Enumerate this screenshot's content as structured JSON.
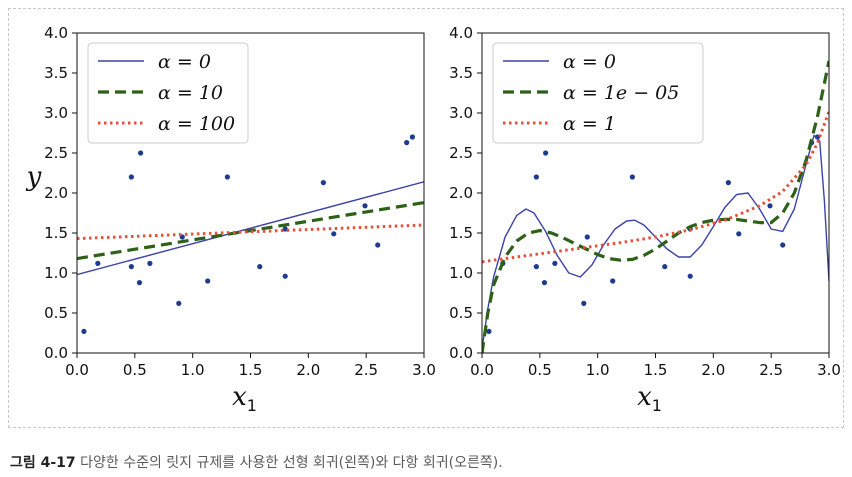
{
  "caption": {
    "number": "그림 4-17",
    "text": "다양한 수준의 릿지 규제를 사용한 선형 회귀(왼쪽)와 다항 회귀(오른쪽)."
  },
  "colors": {
    "points": "#1f3b8f",
    "solid": "#3b42a8",
    "dashed": "#2d6118",
    "dotted": "#e4503c"
  },
  "chart_data": [
    {
      "type": "scatter+line",
      "title": "",
      "xlabel": "x",
      "xlabel_sub": "1",
      "ylabel": "y",
      "xlim": [
        0.0,
        3.0
      ],
      "ylim": [
        0.0,
        4.0
      ],
      "xticks": [
        "0.0",
        "0.5",
        "1.0",
        "1.5",
        "2.0",
        "2.5",
        "3.0"
      ],
      "yticks": [
        "0.0",
        "0.5",
        "1.0",
        "1.5",
        "2.0",
        "2.5",
        "3.0",
        "3.5",
        "4.0"
      ],
      "legend_position": "top-left",
      "points": {
        "x": [
          0.06,
          0.18,
          0.47,
          0.47,
          0.54,
          0.55,
          0.63,
          0.88,
          0.91,
          1.13,
          1.3,
          1.58,
          1.8,
          1.8,
          2.13,
          2.22,
          2.49,
          2.6,
          2.85,
          2.9
        ],
        "y": [
          0.27,
          1.12,
          2.2,
          1.08,
          0.88,
          2.5,
          1.12,
          0.62,
          1.45,
          0.9,
          2.2,
          1.08,
          1.55,
          0.96,
          2.13,
          1.49,
          1.84,
          1.35,
          2.63,
          2.7
        ]
      },
      "series": [
        {
          "name": "α = 0",
          "style": "solid",
          "x": [
            0.0,
            3.0
          ],
          "y": [
            0.98,
            2.14
          ]
        },
        {
          "name": "α = 10",
          "style": "dashed",
          "x": [
            0.0,
            3.0
          ],
          "y": [
            1.18,
            1.88
          ]
        },
        {
          "name": "α = 100",
          "style": "dotted",
          "x": [
            0.0,
            3.0
          ],
          "y": [
            1.43,
            1.6
          ]
        }
      ]
    },
    {
      "type": "scatter+line",
      "title": "",
      "xlabel": "x",
      "xlabel_sub": "1",
      "ylabel": "",
      "xlim": [
        0.0,
        3.0
      ],
      "ylim": [
        0.0,
        4.0
      ],
      "xticks": [
        "0.0",
        "0.5",
        "1.0",
        "1.5",
        "2.0",
        "2.5",
        "3.0"
      ],
      "yticks": [
        "0.0",
        "0.5",
        "1.0",
        "1.5",
        "2.0",
        "2.5",
        "3.0",
        "3.5",
        "4.0"
      ],
      "legend_position": "top-left",
      "points": {
        "x": [
          0.06,
          0.18,
          0.47,
          0.47,
          0.54,
          0.55,
          0.63,
          0.88,
          0.91,
          1.13,
          1.3,
          1.58,
          1.8,
          1.8,
          2.13,
          2.22,
          2.49,
          2.6,
          2.85,
          2.9
        ],
        "y": [
          0.27,
          1.12,
          2.2,
          1.08,
          0.88,
          2.5,
          1.12,
          0.62,
          1.45,
          0.9,
          2.2,
          1.08,
          1.55,
          0.96,
          2.13,
          1.49,
          1.84,
          1.35,
          2.63,
          2.7
        ]
      },
      "series": [
        {
          "name": "α = 0",
          "style": "solid",
          "x": [
            0.0,
            0.05,
            0.1,
            0.2,
            0.3,
            0.38,
            0.45,
            0.55,
            0.65,
            0.75,
            0.85,
            0.95,
            1.05,
            1.15,
            1.25,
            1.32,
            1.4,
            1.5,
            1.6,
            1.7,
            1.8,
            1.9,
            2.0,
            2.1,
            2.2,
            2.3,
            2.4,
            2.5,
            2.6,
            2.7,
            2.8,
            2.87,
            2.92,
            2.96,
            3.0
          ],
          "y": [
            0.05,
            0.55,
            0.95,
            1.45,
            1.72,
            1.8,
            1.75,
            1.52,
            1.22,
            1.0,
            0.95,
            1.1,
            1.35,
            1.55,
            1.65,
            1.66,
            1.6,
            1.45,
            1.3,
            1.2,
            1.2,
            1.35,
            1.58,
            1.82,
            1.98,
            2.0,
            1.8,
            1.55,
            1.52,
            1.8,
            2.35,
            2.72,
            2.65,
            1.9,
            0.9
          ]
        },
        {
          "name": "α = 1e − 05",
          "style": "dashed",
          "x": [
            0.0,
            0.05,
            0.1,
            0.2,
            0.3,
            0.4,
            0.5,
            0.6,
            0.7,
            0.8,
            0.9,
            1.0,
            1.1,
            1.2,
            1.3,
            1.4,
            1.5,
            1.6,
            1.7,
            1.8,
            1.9,
            2.0,
            2.1,
            2.2,
            2.3,
            2.4,
            2.5,
            2.6,
            2.7,
            2.8,
            2.9,
            2.95,
            3.0
          ],
          "y": [
            0.0,
            0.5,
            0.85,
            1.2,
            1.4,
            1.5,
            1.53,
            1.5,
            1.44,
            1.37,
            1.3,
            1.23,
            1.18,
            1.16,
            1.17,
            1.22,
            1.3,
            1.4,
            1.5,
            1.58,
            1.63,
            1.66,
            1.67,
            1.67,
            1.65,
            1.63,
            1.63,
            1.75,
            2.0,
            2.4,
            2.95,
            3.3,
            3.65
          ]
        },
        {
          "name": "α = 1",
          "style": "dotted",
          "x": [
            0.0,
            0.3,
            0.6,
            0.9,
            1.2,
            1.5,
            1.8,
            2.1,
            2.4,
            2.6,
            2.8,
            2.9,
            3.0
          ],
          "y": [
            1.14,
            1.2,
            1.26,
            1.32,
            1.38,
            1.45,
            1.54,
            1.66,
            1.84,
            2.02,
            2.35,
            2.62,
            3.02
          ]
        }
      ]
    }
  ]
}
